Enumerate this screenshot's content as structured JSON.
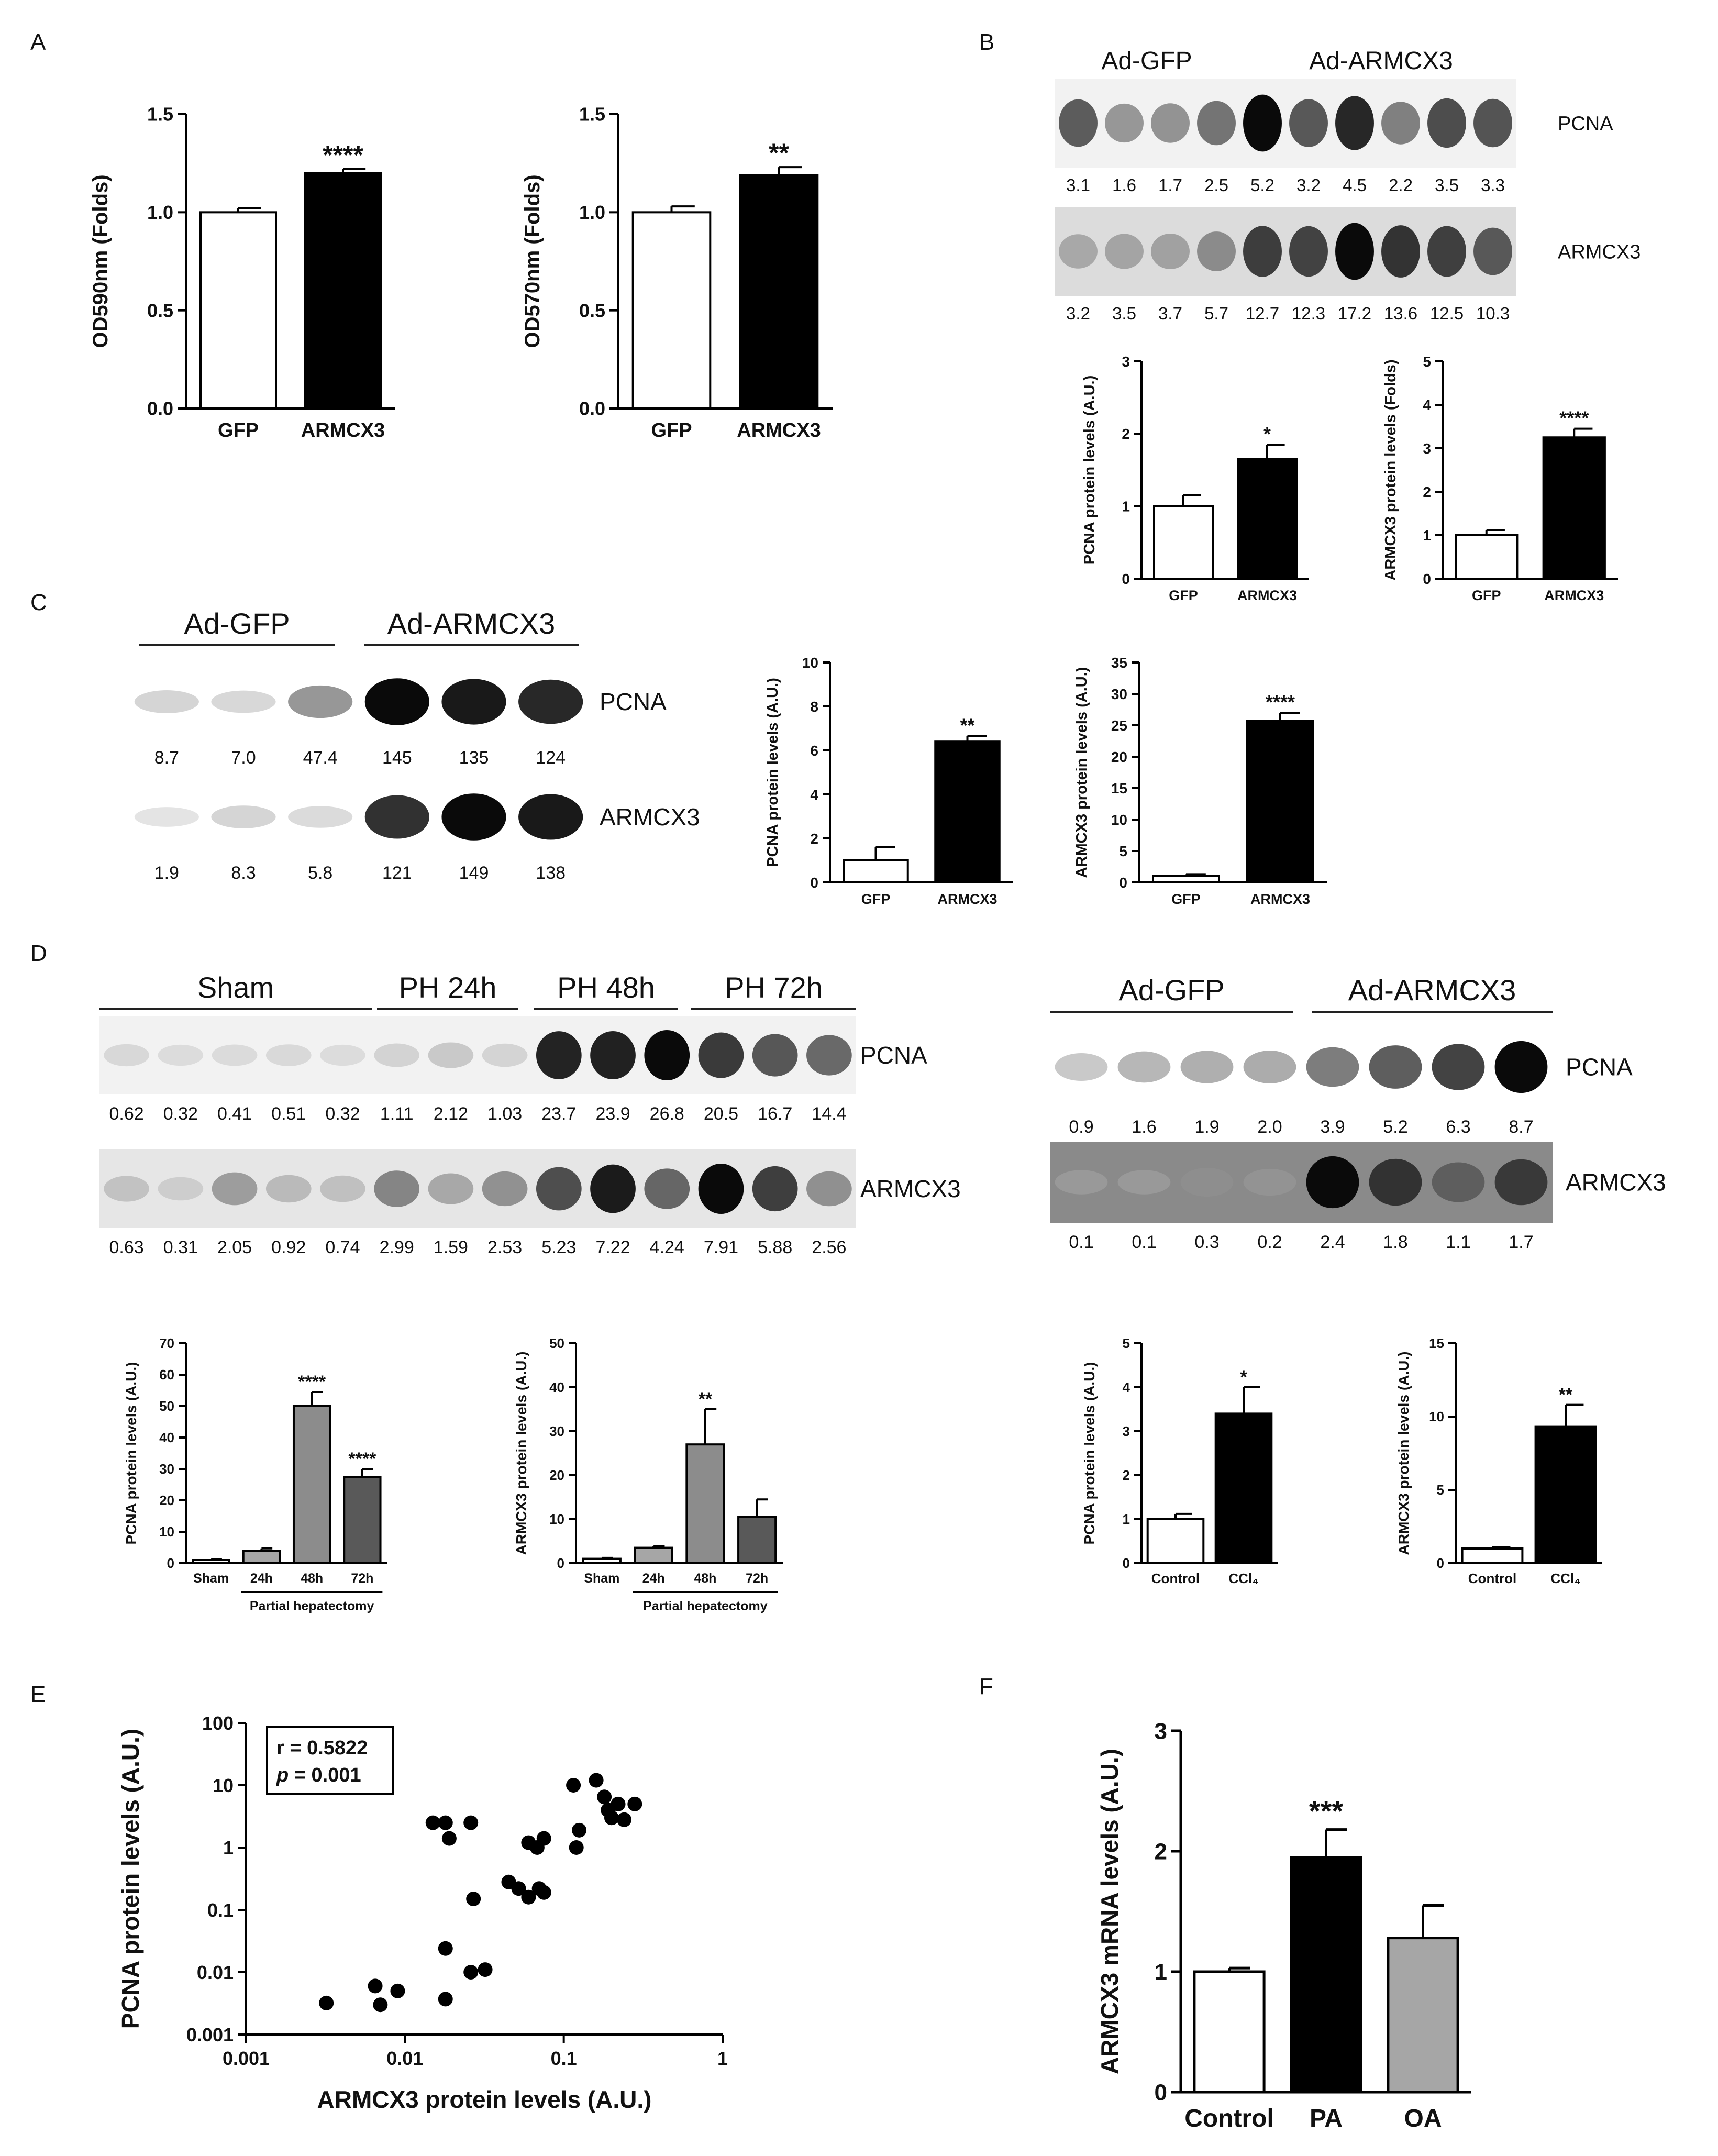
{
  "panel_labels": {
    "A": "A",
    "B": "B",
    "C": "C",
    "D": "D",
    "E": "E",
    "F": "F"
  },
  "colors": {
    "white_bar": "#ffffff",
    "black_bar": "#000000",
    "gray_bar": "#8c8c8c",
    "dark_gray_bar": "#595959",
    "light_gray_bar": "#a6a6a6",
    "blot_bg_light": "#f2f2f2",
    "blot_bg_dark": "#8a8a8a"
  },
  "blots": {
    "B": {
      "groups": [
        "Ad-GFP",
        "Ad-ARMCX3"
      ],
      "rows": [
        {
          "label": "PCNA",
          "band_values": [
            "3.1",
            "1.6",
            "1.7",
            "2.5",
            "5.2",
            "3.2",
            "4.5",
            "2.2",
            "3.5",
            "3.3"
          ]
        },
        {
          "label": "ARMCX3",
          "band_values": [
            "3.2",
            "3.5",
            "3.7",
            "5.7",
            "12.7",
            "12.3",
            "17.2",
            "13.6",
            "12.5",
            "10.3"
          ]
        }
      ]
    },
    "C": {
      "groups": [
        "Ad-GFP",
        "Ad-ARMCX3"
      ],
      "rows": [
        {
          "label": "PCNA",
          "band_values": [
            "8.7",
            "7.0",
            "47.4",
            "145",
            "135",
            "124"
          ]
        },
        {
          "label": "ARMCX3",
          "band_values": [
            "1.9",
            "8.3",
            "5.8",
            "121",
            "149",
            "138"
          ]
        }
      ]
    },
    "D_left": {
      "groups": [
        "Sham",
        "PH 24h",
        "PH 48h",
        "PH 72h"
      ],
      "rows": [
        {
          "label": "PCNA",
          "band_values": [
            "0.62",
            "0.32",
            "0.41",
            "0.51",
            "0.32",
            "1.11",
            "2.12",
            "1.03",
            "23.7",
            "23.9",
            "26.8",
            "20.5",
            "16.7",
            "14.4"
          ]
        },
        {
          "label": "ARMCX3",
          "band_values": [
            "0.63",
            "0.31",
            "2.05",
            "0.92",
            "0.74",
            "2.99",
            "1.59",
            "2.53",
            "5.23",
            "7.22",
            "4.24",
            "7.91",
            "5.88",
            "2.56"
          ]
        }
      ]
    },
    "D_right": {
      "groups": [
        "Ad-GFP",
        "Ad-ARMCX3"
      ],
      "rows": [
        {
          "label": "PCNA",
          "band_values": [
            "0.9",
            "1.6",
            "1.9",
            "2.0",
            "3.9",
            "5.2",
            "6.3",
            "8.7"
          ]
        },
        {
          "label": "ARMCX3",
          "band_values": [
            "0.1",
            "0.1",
            "0.3",
            "0.2",
            "2.4",
            "1.8",
            "1.1",
            "1.7"
          ]
        }
      ]
    }
  },
  "chart_data": [
    {
      "id": "A1",
      "type": "bar",
      "title": "",
      "xlabel": "",
      "ylabel": "OD590nm (Folds)",
      "categories": [
        "GFP",
        "ARMCX3"
      ],
      "values": [
        1.0,
        1.2
      ],
      "errors": [
        0.02,
        0.02
      ],
      "ylim": [
        0,
        1.5
      ],
      "yticks": [
        "0.0",
        "0.5",
        "1.0",
        "1.5"
      ],
      "significance": [
        "",
        "****"
      ]
    },
    {
      "id": "A2",
      "type": "bar",
      "title": "",
      "xlabel": "",
      "ylabel": "OD570nm (Folds)",
      "categories": [
        "GFP",
        "ARMCX3"
      ],
      "values": [
        1.0,
        1.19
      ],
      "errors": [
        0.03,
        0.04
      ],
      "ylim": [
        0,
        1.5
      ],
      "yticks": [
        "0.0",
        "0.5",
        "1.0",
        "1.5"
      ],
      "significance": [
        "",
        "**"
      ]
    },
    {
      "id": "B1",
      "type": "bar",
      "title": "",
      "xlabel": "",
      "ylabel": "PCNA protein levels (A.U.)",
      "categories": [
        "GFP",
        "ARMCX3"
      ],
      "values": [
        1.0,
        1.65
      ],
      "errors": [
        0.15,
        0.2
      ],
      "ylim": [
        0,
        3
      ],
      "yticks": [
        "0",
        "1",
        "2",
        "3"
      ],
      "significance": [
        "",
        "*"
      ]
    },
    {
      "id": "B2",
      "type": "bar",
      "title": "",
      "xlabel": "",
      "ylabel": "ARMCX3 protein levels (Folds)",
      "categories": [
        "GFP",
        "ARMCX3"
      ],
      "values": [
        1.0,
        3.25
      ],
      "errors": [
        0.12,
        0.2
      ],
      "ylim": [
        0,
        5
      ],
      "yticks": [
        "0",
        "1",
        "2",
        "3",
        "4",
        "5"
      ],
      "significance": [
        "",
        "****"
      ]
    },
    {
      "id": "C1",
      "type": "bar",
      "title": "",
      "xlabel": "",
      "ylabel": "PCNA protein levels (A.U.)",
      "categories": [
        "GFP",
        "ARMCX3"
      ],
      "values": [
        1.0,
        6.4
      ],
      "errors": [
        0.6,
        0.25
      ],
      "ylim": [
        0,
        10
      ],
      "yticks": [
        "0",
        "2",
        "4",
        "6",
        "8",
        "10"
      ],
      "significance": [
        "",
        "**"
      ]
    },
    {
      "id": "C2",
      "type": "bar",
      "title": "",
      "xlabel": "",
      "ylabel": "ARMCX3 protein levels (A.U.)",
      "categories": [
        "GFP",
        "ARMCX3"
      ],
      "values": [
        1.0,
        25.7
      ],
      "errors": [
        0.3,
        1.3
      ],
      "ylim": [
        0,
        35
      ],
      "yticks": [
        "0",
        "5",
        "10",
        "15",
        "20",
        "25",
        "30",
        "35"
      ],
      "significance": [
        "",
        "****"
      ]
    },
    {
      "id": "D1",
      "type": "bar",
      "title": "",
      "xlabel": "Partial hepatectomy",
      "ylabel": "PCNA protein levels (A.U.)",
      "categories": [
        "Sham",
        "24h",
        "48h",
        "72h"
      ],
      "values": [
        1.0,
        3.9,
        50.0,
        27.5
      ],
      "errors": [
        0.2,
        0.8,
        4.5,
        2.5
      ],
      "ylim": [
        0,
        70
      ],
      "yticks": [
        "0",
        "10",
        "20",
        "30",
        "40",
        "50",
        "60",
        "70"
      ],
      "significance": [
        "",
        "",
        "****",
        "****"
      ]
    },
    {
      "id": "D2",
      "type": "bar",
      "title": "",
      "xlabel": "Partial hepatectomy",
      "ylabel": "ARMCX3 protein levels (A.U.)",
      "categories": [
        "Sham",
        "24h",
        "48h",
        "72h"
      ],
      "values": [
        1.0,
        3.5,
        27.0,
        10.5
      ],
      "errors": [
        0.2,
        0.4,
        8.0,
        4.0
      ],
      "ylim": [
        0,
        50
      ],
      "yticks": [
        "0",
        "10",
        "20",
        "30",
        "40",
        "50"
      ],
      "significance": [
        "",
        "",
        "**",
        ""
      ]
    },
    {
      "id": "D3",
      "type": "bar",
      "title": "",
      "xlabel": "",
      "ylabel": "PCNA protein levels (A.U.)",
      "categories": [
        "Control",
        "CCl₄"
      ],
      "values": [
        1.0,
        3.4
      ],
      "errors": [
        0.12,
        0.6
      ],
      "ylim": [
        0,
        5
      ],
      "yticks": [
        "0",
        "1",
        "2",
        "3",
        "4",
        "5"
      ],
      "significance": [
        "",
        "*"
      ]
    },
    {
      "id": "D4",
      "type": "bar",
      "title": "",
      "xlabel": "",
      "ylabel": "ARMCX3 protein levels (A.U.)",
      "categories": [
        "Control",
        "CCl₄"
      ],
      "values": [
        1.0,
        9.3
      ],
      "errors": [
        0.1,
        1.5
      ],
      "ylim": [
        0,
        15
      ],
      "yticks": [
        "0",
        "5",
        "10",
        "15"
      ],
      "significance": [
        "",
        "**"
      ]
    },
    {
      "id": "E",
      "type": "scatter",
      "title": "",
      "xlabel": "ARMCX3 protein levels  (A.U.)",
      "ylabel": "PCNA protein levels (A.U.)",
      "xscale": "log",
      "yscale": "log",
      "xlim": [
        0.001,
        1
      ],
      "ylim": [
        0.001,
        100
      ],
      "xticks": [
        "0.001",
        "0.01",
        "0.1",
        "1"
      ],
      "yticks": [
        "0.001",
        "0.01",
        "0.1",
        "1",
        "10",
        "100"
      ],
      "annotation_r": "r = 0.5822",
      "annotation_p_symbol": "p",
      "annotation_p_value": " = 0.001",
      "points": [
        [
          0.0032,
          0.0032
        ],
        [
          0.0065,
          0.006
        ],
        [
          0.007,
          0.003
        ],
        [
          0.009,
          0.005
        ],
        [
          0.015,
          2.5
        ],
        [
          0.018,
          2.5
        ],
        [
          0.019,
          1.4
        ],
        [
          0.018,
          0.024
        ],
        [
          0.018,
          0.0037
        ],
        [
          0.026,
          2.5
        ],
        [
          0.027,
          0.15
        ],
        [
          0.026,
          0.01
        ],
        [
          0.032,
          0.011
        ],
        [
          0.045,
          0.28
        ],
        [
          0.052,
          0.22
        ],
        [
          0.06,
          0.16
        ],
        [
          0.06,
          1.2
        ],
        [
          0.068,
          1.0
        ],
        [
          0.075,
          1.4
        ],
        [
          0.07,
          0.22
        ],
        [
          0.075,
          0.19
        ],
        [
          0.115,
          10.0
        ],
        [
          0.125,
          1.9
        ],
        [
          0.12,
          1.0
        ],
        [
          0.16,
          12.0
        ],
        [
          0.18,
          6.5
        ],
        [
          0.19,
          4.0
        ],
        [
          0.2,
          3.0
        ],
        [
          0.22,
          5.0
        ],
        [
          0.24,
          2.8
        ],
        [
          0.28,
          5.0
        ]
      ]
    },
    {
      "id": "F",
      "type": "bar",
      "title": "",
      "xlabel": "",
      "ylabel": "ARMCX3 mRNA levels (A.U.)",
      "categories": [
        "Control",
        "PA",
        "OA"
      ],
      "values": [
        1.0,
        1.95,
        1.28
      ],
      "errors": [
        0.03,
        0.23,
        0.27
      ],
      "ylim": [
        0,
        3
      ],
      "yticks": [
        "0",
        "1",
        "2",
        "3"
      ],
      "significance": [
        "",
        "***",
        ""
      ]
    }
  ]
}
